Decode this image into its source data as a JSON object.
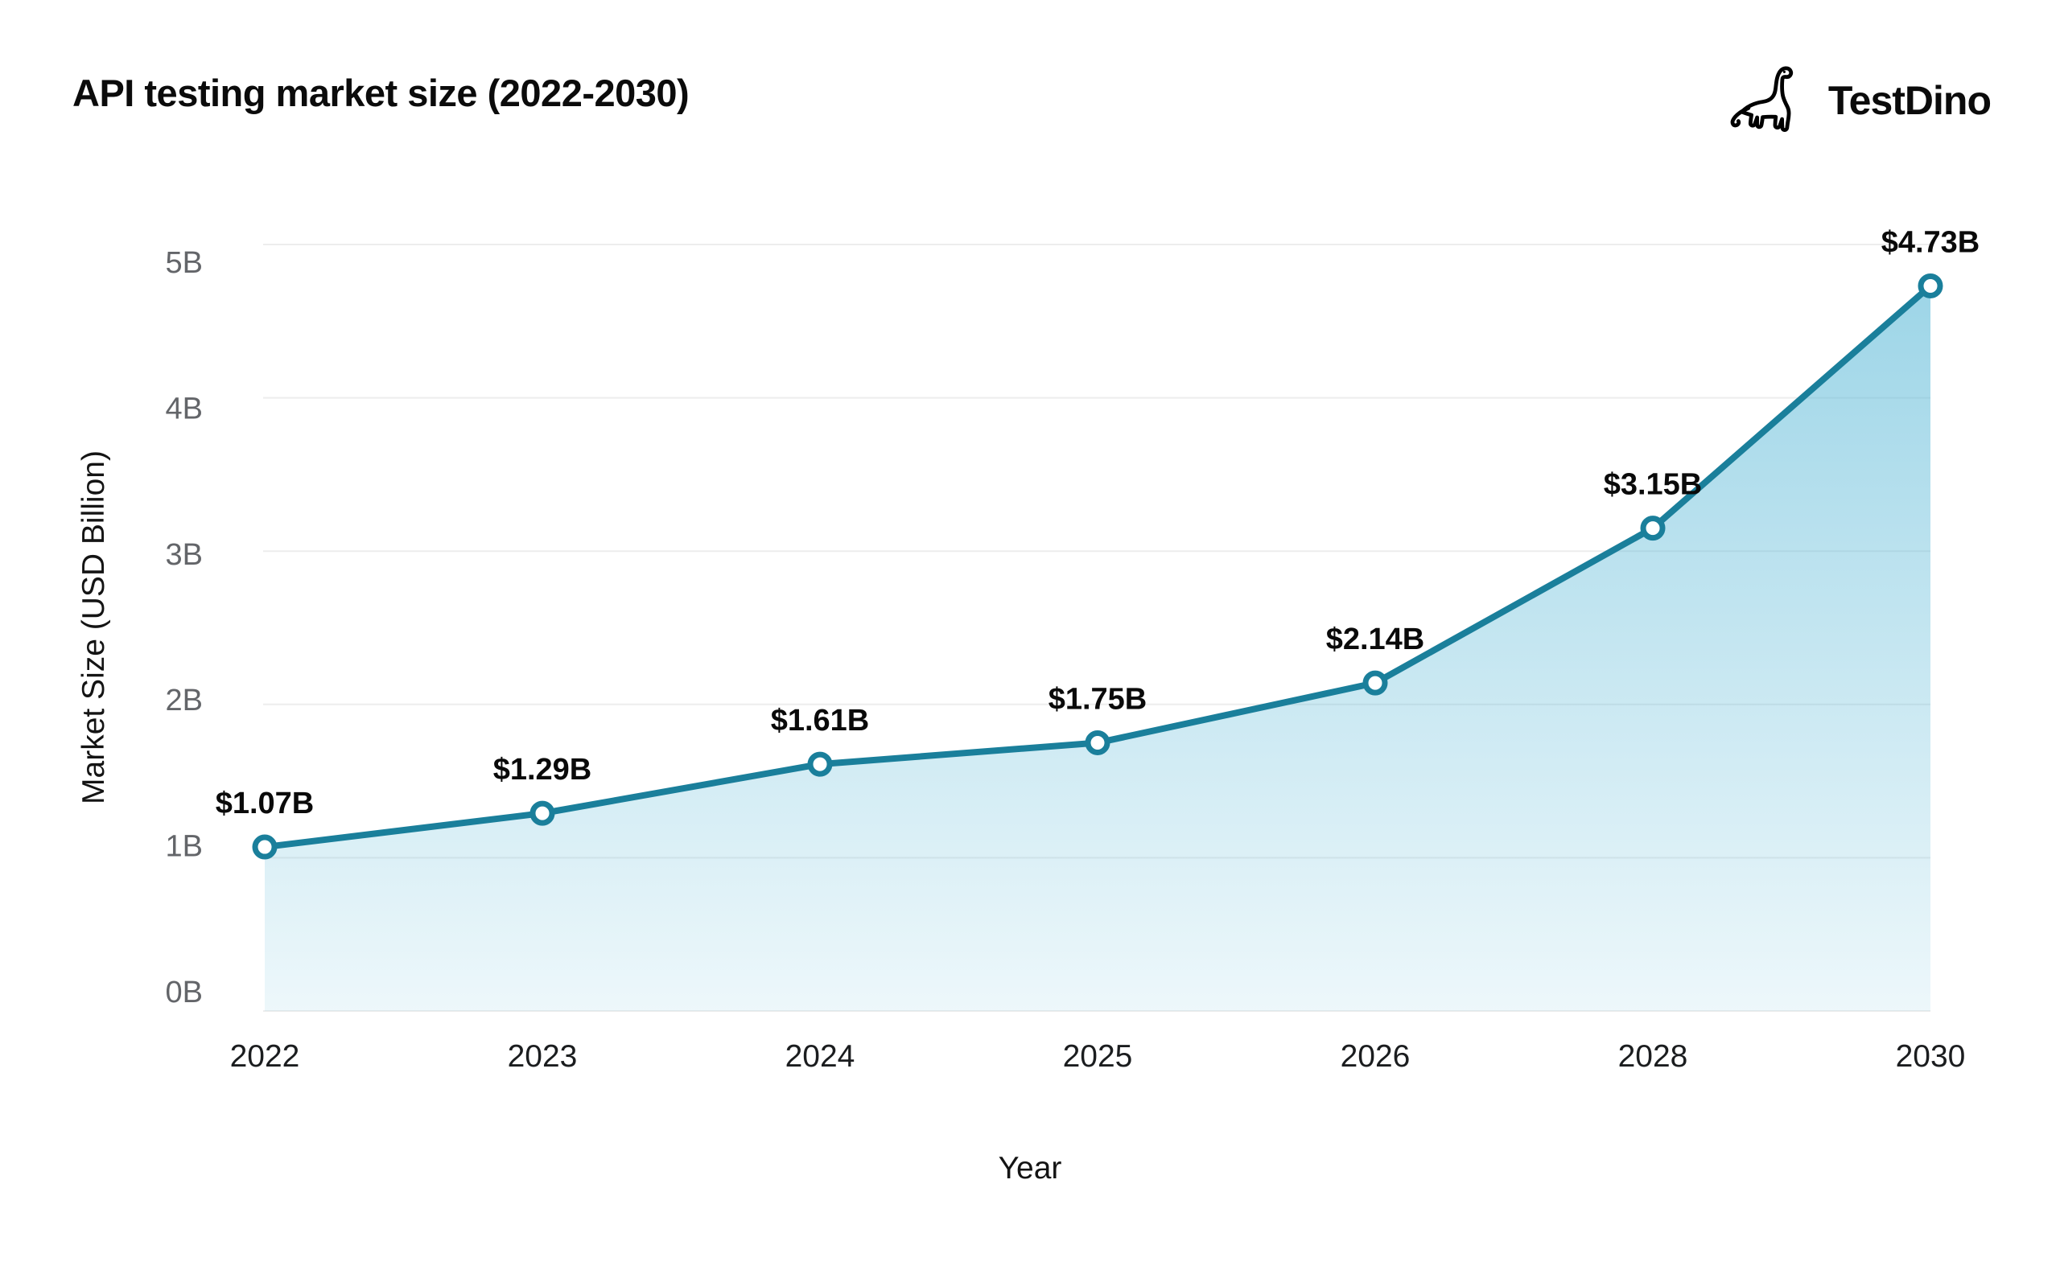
{
  "page": {
    "title": "API testing market size (2022-2030)"
  },
  "logo": {
    "icon": "dinosaur-outline-icon",
    "text": "TestDino"
  },
  "chart_data": {
    "type": "area",
    "title": "API testing market size (2022-2030)",
    "categories": [
      "2022",
      "2023",
      "2024",
      "2025",
      "2026",
      "2028",
      "2030"
    ],
    "values": [
      1.07,
      1.29,
      1.61,
      1.75,
      2.14,
      3.15,
      4.73
    ],
    "point_labels": [
      "$1.07B",
      "$1.29B",
      "$1.61B",
      "$1.75B",
      "$2.14B",
      "$3.15B",
      "$4.73B"
    ],
    "xlabel": "Year",
    "ylabel": "Market Size (USD Billion)",
    "ylim": [
      0,
      5
    ],
    "yticks": [
      {
        "value": 0,
        "label": "0B"
      },
      {
        "value": 1,
        "label": "1B"
      },
      {
        "value": 2,
        "label": "2B"
      },
      {
        "value": 3,
        "label": "3B"
      },
      {
        "value": 4,
        "label": "4B"
      },
      {
        "value": 5,
        "label": "5B"
      }
    ],
    "grid": "horizontal",
    "legend": "none",
    "marker": "open-circle",
    "colors": {
      "line": "#1a7f9b",
      "area_base": "#4db3d4",
      "grid": "#ededed",
      "marker_fill": "#ffffff",
      "ytick_text": "#636569",
      "xtick_text": "#1b1d1f",
      "point_label_text": "#0a0a0a",
      "title_text": "#0b0b0b"
    }
  }
}
